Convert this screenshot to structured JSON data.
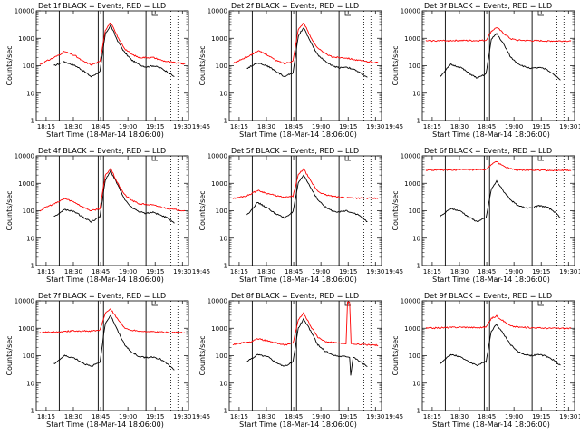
{
  "chart_data": {
    "type": "line",
    "layout": "3x3 grid",
    "shared_axes": {
      "xlabel": "Start Time (18-Mar-14 18:06:00)",
      "ylabel": "Counts/sec",
      "yscale": "log",
      "ylim": [
        1,
        10000
      ],
      "yticks": [
        "1",
        "10",
        "100",
        "1000",
        "10000"
      ],
      "xticks": [
        "18:15",
        "18:30",
        "18:45",
        "19:00",
        "19:15",
        "19:30",
        "19:45"
      ],
      "xlim_minutes_after_18_00": [
        9,
        52
      ]
    },
    "colors": {
      "events": "#000000",
      "lld": "#ff0000"
    },
    "panels": [
      {
        "title": "Det 1f BLACK = Events, RED = LLD",
        "solid_markers_min": [
          15.5,
          26.5,
          28.0,
          40.0
        ],
        "dotted_markers_min": [
          47,
          49
        ],
        "series": [
          {
            "name": "Events",
            "x": [
              14,
              17,
              20,
              22,
              24.5,
              27,
              28.5,
              30,
              32,
              34,
              36,
              38,
              40,
              42,
              44,
              46,
              48
            ],
            "y": [
              100,
              140,
              100,
              70,
              40,
              60,
              1400,
              3000,
              800,
              300,
              160,
              110,
              90,
              100,
              85,
              60,
              40
            ]
          },
          {
            "name": "LLD",
            "x": [
              10,
              12,
              15,
              17,
              20,
              22,
              24.5,
              27,
              28.5,
              30,
              32,
              34,
              36,
              38,
              40,
              42,
              45,
              48,
              51
            ],
            "y": [
              110,
              150,
              230,
              330,
              230,
              150,
              110,
              140,
              2000,
              3800,
              1100,
              420,
              260,
              200,
              200,
              200,
              150,
              130,
              115
            ]
          }
        ]
      },
      {
        "title": "Det 2f BLACK = Events, RED = LLD",
        "solid_markers_min": [
          15.5,
          26.5,
          28.0,
          40.0
        ],
        "dotted_markers_min": [
          47,
          49
        ],
        "series": [
          {
            "name": "Events",
            "x": [
              14,
              17,
              20,
              22,
              24.5,
              27,
              28.5,
              30,
              32,
              34,
              36,
              38,
              40,
              42,
              44,
              46,
              48
            ],
            "y": [
              80,
              130,
              95,
              65,
              40,
              55,
              1200,
              2500,
              700,
              250,
              150,
              100,
              85,
              90,
              75,
              55,
              38
            ]
          },
          {
            "name": "LLD",
            "x": [
              10,
              12,
              15,
              17,
              20,
              22,
              24.5,
              27,
              28.5,
              30,
              32,
              34,
              36,
              38,
              40,
              42,
              45,
              48,
              51
            ],
            "y": [
              120,
              160,
              240,
              350,
              240,
              160,
              120,
              150,
              2100,
              3700,
              1100,
              430,
              280,
              210,
              200,
              195,
              160,
              140,
              130
            ]
          }
        ]
      },
      {
        "title": "Det 3f BLACK = Events, RED = LLD",
        "solid_markers_min": [
          15.5,
          26.5,
          28.0,
          40.0
        ],
        "dotted_markers_min": [
          47,
          49
        ],
        "series": [
          {
            "name": "Events",
            "x": [
              14,
              17,
              20,
              22,
              24.5,
              27,
              28.5,
              30,
              32,
              34,
              36,
              38,
              40,
              42,
              44,
              46,
              48
            ],
            "y": [
              40,
              110,
              85,
              55,
              35,
              50,
              900,
              1500,
              600,
              200,
              120,
              90,
              80,
              85,
              75,
              50,
              30
            ]
          },
          {
            "name": "LLD",
            "x": [
              10,
              15,
              20,
              24.5,
              27,
              28.5,
              30,
              32,
              34,
              36,
              40,
              45,
              51
            ],
            "y": [
              800,
              820,
              830,
              820,
              850,
              1800,
              2500,
              1500,
              950,
              850,
              820,
              800,
              800
            ]
          }
        ]
      },
      {
        "title": "Det 4f BLACK = Events, RED = LLD",
        "solid_markers_min": [
          15.5,
          26.5,
          28.0,
          40.0
        ],
        "dotted_markers_min": [
          47,
          49
        ],
        "series": [
          {
            "name": "Events",
            "x": [
              14,
              17,
              20,
              22,
              24.5,
              27,
              28.5,
              30,
              32,
              34,
              36,
              38,
              40,
              42,
              44,
              46,
              48
            ],
            "y": [
              60,
              110,
              90,
              60,
              40,
              60,
              1300,
              2800,
              900,
              250,
              130,
              95,
              80,
              90,
              70,
              55,
              35
            ]
          },
          {
            "name": "LLD",
            "x": [
              10,
              12,
              15,
              17,
              20,
              22,
              24.5,
              27,
              28.5,
              30,
              32,
              34,
              36,
              38,
              40,
              42,
              45,
              48,
              51
            ],
            "y": [
              100,
              140,
              200,
              280,
              200,
              140,
              100,
              120,
              1900,
              3500,
              1000,
              380,
              240,
              180,
              170,
              160,
              130,
              110,
              100
            ]
          }
        ]
      },
      {
        "title": "Det 5f BLACK = Events, RED = LLD",
        "solid_markers_min": [
          15.5,
          26.5,
          28.0,
          40.0
        ],
        "dotted_markers_min": [
          47,
          49
        ],
        "series": [
          {
            "name": "Events",
            "x": [
              14,
              17,
              20,
              22,
              24.5,
              27,
              28.5,
              30,
              32,
              34,
              36,
              38,
              40,
              42,
              44,
              46,
              48
            ],
            "y": [
              70,
              200,
              120,
              80,
              55,
              90,
              1000,
              2000,
              700,
              250,
              140,
              100,
              90,
              100,
              85,
              65,
              40
            ]
          },
          {
            "name": "LLD",
            "x": [
              10,
              14,
              17,
              20,
              24.5,
              27,
              28.5,
              30,
              32,
              34,
              36,
              40,
              45,
              51
            ],
            "y": [
              280,
              350,
              550,
              420,
              300,
              340,
              2000,
              3400,
              1200,
              520,
              380,
              310,
              290,
              280
            ]
          }
        ]
      },
      {
        "title": "Det 6f BLACK = Events, RED = LLD",
        "solid_markers_min": [
          15.5,
          26.5,
          28.0,
          40.0
        ],
        "dotted_markers_min": [
          47,
          49
        ],
        "series": [
          {
            "name": "Events",
            "x": [
              14,
              17,
              20,
              22,
              24.5,
              27,
              28.5,
              30,
              32,
              34,
              36,
              38,
              40,
              42,
              44,
              46,
              48
            ],
            "y": [
              60,
              120,
              95,
              60,
              40,
              55,
              600,
              1200,
              500,
              250,
              150,
              130,
              130,
              150,
              140,
              100,
              55
            ]
          },
          {
            "name": "LLD",
            "x": [
              10,
              15,
              20,
              24.5,
              27,
              28.5,
              30,
              32,
              34,
              36,
              40,
              45,
              51
            ],
            "y": [
              3000,
              3050,
              3100,
              3050,
              3100,
              5000,
              6000,
              4200,
              3300,
              3100,
              3000,
              2950,
              2950
            ]
          }
        ]
      },
      {
        "title": "Det 7f BLACK = Events, RED = LLD",
        "solid_markers_min": [
          15.5,
          26.5,
          28.0,
          40.0
        ],
        "dotted_markers_min": [
          47,
          49
        ],
        "series": [
          {
            "name": "Events",
            "x": [
              14,
              17,
              20,
              22,
              24.5,
              27,
              28.5,
              30,
              32,
              34,
              36,
              38,
              40,
              42,
              44,
              46,
              48
            ],
            "y": [
              50,
              100,
              80,
              55,
              40,
              60,
              1500,
              3000,
              800,
              250,
              130,
              95,
              85,
              90,
              75,
              50,
              30
            ]
          },
          {
            "name": "LLD",
            "x": [
              10,
              15,
              20,
              24.5,
              27,
              28.5,
              30,
              32,
              34,
              36,
              40,
              45,
              51
            ],
            "y": [
              700,
              750,
              800,
              780,
              850,
              3500,
              5000,
              2200,
              1000,
              850,
              760,
              720,
              700
            ]
          }
        ]
      },
      {
        "title": "Det 8f BLACK = Events, RED = LLD",
        "solid_markers_min": [
          15.5,
          26.5,
          28.0,
          40.0
        ],
        "dotted_markers_min": [
          47,
          49
        ],
        "series": [
          {
            "name": "Events",
            "x": [
              14,
              17,
              20,
              22,
              24.5,
              27,
              28.5,
              30,
              32,
              34,
              36,
              38,
              40,
              42,
              43,
              43.3,
              44,
              46,
              48
            ],
            "y": [
              60,
              110,
              90,
              60,
              40,
              60,
              1000,
              2200,
              800,
              250,
              150,
              110,
              95,
              95,
              90,
              20,
              90,
              60,
              40
            ]
          },
          {
            "name": "LLD",
            "x": [
              10,
              15,
              17,
              20,
              24.5,
              27,
              28.5,
              30,
              32,
              34,
              36,
              40,
              42,
              42.4,
              43,
              43.4,
              44,
              48,
              51
            ],
            "y": [
              260,
              320,
              420,
              340,
              250,
              280,
              2000,
              3600,
              1200,
              480,
              330,
              290,
              280,
              9000,
              9000,
              280,
              270,
              250,
              240
            ]
          }
        ]
      },
      {
        "title": "Det 9f BLACK = Events, RED = LLD",
        "solid_markers_min": [
          15.5,
          26.5,
          28.0,
          40.0
        ],
        "dotted_markers_min": [
          47,
          49
        ],
        "series": [
          {
            "name": "Events",
            "x": [
              14,
              17,
              20,
              22,
              24.5,
              27,
              28.5,
              30,
              32,
              34,
              36,
              38,
              40,
              42,
              44,
              46,
              48
            ],
            "y": [
              50,
              110,
              90,
              60,
              45,
              60,
              800,
              1400,
              600,
              250,
              140,
              110,
              100,
              110,
              95,
              70,
              45
            ]
          },
          {
            "name": "LLD",
            "x": [
              10,
              15,
              20,
              24.5,
              27,
              28.5,
              30,
              32,
              34,
              36,
              40,
              45,
              51
            ],
            "y": [
              1000,
              1050,
              1100,
              1050,
              1100,
              2300,
              2800,
              1800,
              1200,
              1100,
              1050,
              1000,
              1000
            ]
          }
        ]
      }
    ]
  }
}
